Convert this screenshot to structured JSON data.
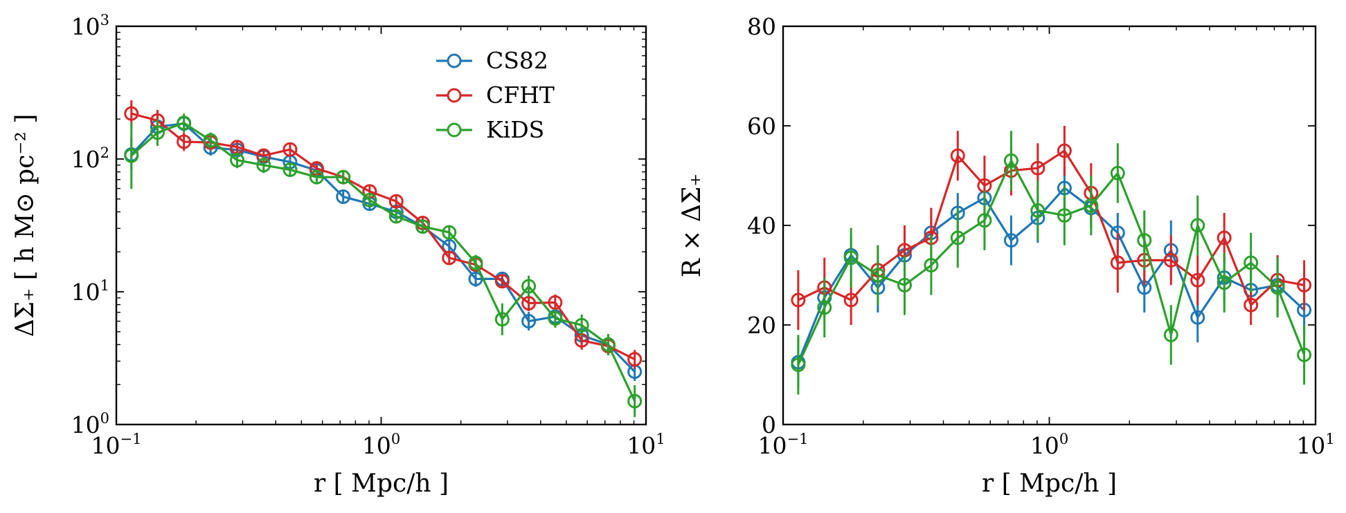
{
  "chart_data": [
    {
      "type": "line",
      "xlabel": "r [ Mpc/h ]",
      "ylabel": "ΔΣ₊ [ h M⊙ pc⁻² ]",
      "xscale": "log",
      "yscale": "log",
      "xlim": [
        0.1,
        10
      ],
      "ylim": [
        1,
        1000
      ],
      "grid": false,
      "legend_position": "top-right",
      "xticks": [
        {
          "base": "10",
          "exp": "−1"
        },
        {
          "base": "10",
          "exp": "0"
        },
        {
          "base": "10",
          "exp": "1"
        }
      ],
      "yticks": [
        {
          "base": "10",
          "exp": "0"
        },
        {
          "base": "10",
          "exp": "1"
        },
        {
          "base": "10",
          "exp": "2"
        },
        {
          "base": "10",
          "exp": "3"
        }
      ],
      "x": [
        0.114,
        0.143,
        0.18,
        0.227,
        0.286,
        0.36,
        0.453,
        0.571,
        0.719,
        0.905,
        1.14,
        1.435,
        1.807,
        2.275,
        2.865,
        3.607,
        4.541,
        5.718,
        7.199,
        9.064
      ],
      "series": [
        {
          "name": "CS82",
          "color": "#1f77b4",
          "values": [
            108,
            175,
            185,
            122,
            117,
            104,
            95,
            82,
            52,
            46,
            40,
            31,
            22,
            12.5,
            12.5,
            6,
            6.5,
            4.7,
            4.0,
            2.5
          ],
          "errors": [
            0.12,
            0.1,
            0.06,
            0.06,
            0.06,
            0.05,
            0.05,
            0.05,
            0.05,
            0.04,
            0.04,
            0.04,
            0.05,
            0.06,
            0.05,
            0.07,
            0.06,
            0.07,
            0.06,
            0.07
          ]
        },
        {
          "name": "CFHT",
          "color": "#d62728",
          "values": [
            220,
            195,
            135,
            133,
            123,
            106,
            118,
            85,
            73,
            57,
            48,
            33,
            18,
            16,
            12,
            8.2,
            8.3,
            4.3,
            3.9,
            3.1
          ],
          "errors": [
            0.1,
            0.08,
            0.07,
            0.05,
            0.05,
            0.05,
            0.04,
            0.04,
            0.04,
            0.04,
            0.04,
            0.04,
            0.05,
            0.05,
            0.05,
            0.06,
            0.06,
            0.07,
            0.07,
            0.07
          ]
        },
        {
          "name": "KiDS",
          "color": "#2ca02c",
          "values": [
            106,
            158,
            187,
            138,
            98,
            90,
            83,
            73,
            73,
            49,
            37,
            31,
            28,
            16.5,
            6.2,
            11,
            6.3,
            5.6,
            4.0,
            1.5
          ],
          "errors": [
            0.25,
            0.1,
            0.07,
            0.06,
            0.06,
            0.06,
            0.05,
            0.05,
            0.05,
            0.05,
            0.05,
            0.05,
            0.05,
            0.06,
            0.12,
            0.08,
            0.07,
            0.08,
            0.08,
            0.12
          ]
        }
      ]
    },
    {
      "type": "line",
      "xlabel": "r [ Mpc/h ]",
      "ylabel": "R × ΔΣ₊",
      "xscale": "log",
      "yscale": "linear",
      "xlim": [
        0.1,
        10
      ],
      "ylim": [
        0,
        80
      ],
      "grid": false,
      "xticks": [
        {
          "base": "10",
          "exp": "−1"
        },
        {
          "base": "10",
          "exp": "0"
        },
        {
          "base": "10",
          "exp": "1"
        }
      ],
      "yticks": [
        {
          "value": 0,
          "label": "0"
        },
        {
          "value": 20,
          "label": "20"
        },
        {
          "value": 40,
          "label": "40"
        },
        {
          "value": 60,
          "label": "60"
        },
        {
          "value": 80,
          "label": "80"
        }
      ],
      "x": [
        0.114,
        0.143,
        0.18,
        0.227,
        0.286,
        0.36,
        0.453,
        0.571,
        0.719,
        0.905,
        1.14,
        1.435,
        1.807,
        2.275,
        2.865,
        3.607,
        4.541,
        5.718,
        7.199,
        9.064
      ],
      "series": [
        {
          "name": "CS82",
          "color": "#1f77b4",
          "values": [
            12.5,
            25.5,
            34,
            27.5,
            34,
            38.5,
            42.5,
            45.5,
            37,
            41.5,
            47.5,
            43.5,
            38.5,
            27.5,
            35,
            21.5,
            29.5,
            27,
            28,
            23
          ],
          "errors": [
            5,
            4,
            4,
            5,
            4,
            5,
            4,
            4,
            5,
            5,
            4,
            4,
            4,
            5,
            6,
            5,
            5,
            5,
            6,
            5
          ]
        },
        {
          "name": "CFHT",
          "color": "#d62728",
          "values": [
            25,
            27.5,
            25,
            31,
            35,
            37.5,
            54,
            48,
            51,
            51.5,
            55,
            46.5,
            32.5,
            33,
            33,
            29,
            37.5,
            24,
            29,
            28
          ],
          "errors": [
            6,
            6,
            5,
            5,
            5,
            6,
            5,
            6,
            5,
            5,
            5,
            6,
            6,
            5,
            5,
            5,
            5,
            4,
            5,
            5
          ]
        },
        {
          "name": "KiDS",
          "color": "#2ca02c",
          "values": [
            12,
            23.5,
            33.5,
            30,
            28,
            32,
            37.5,
            41,
            53,
            43,
            42,
            44,
            50.5,
            37,
            18,
            40,
            28.5,
            32.5,
            27.5,
            14
          ],
          "errors": [
            6,
            6,
            6,
            6,
            6,
            6,
            6,
            6,
            6,
            6,
            6,
            6,
            6,
            6,
            6,
            6,
            6,
            6,
            6,
            6
          ]
        }
      ]
    }
  ]
}
